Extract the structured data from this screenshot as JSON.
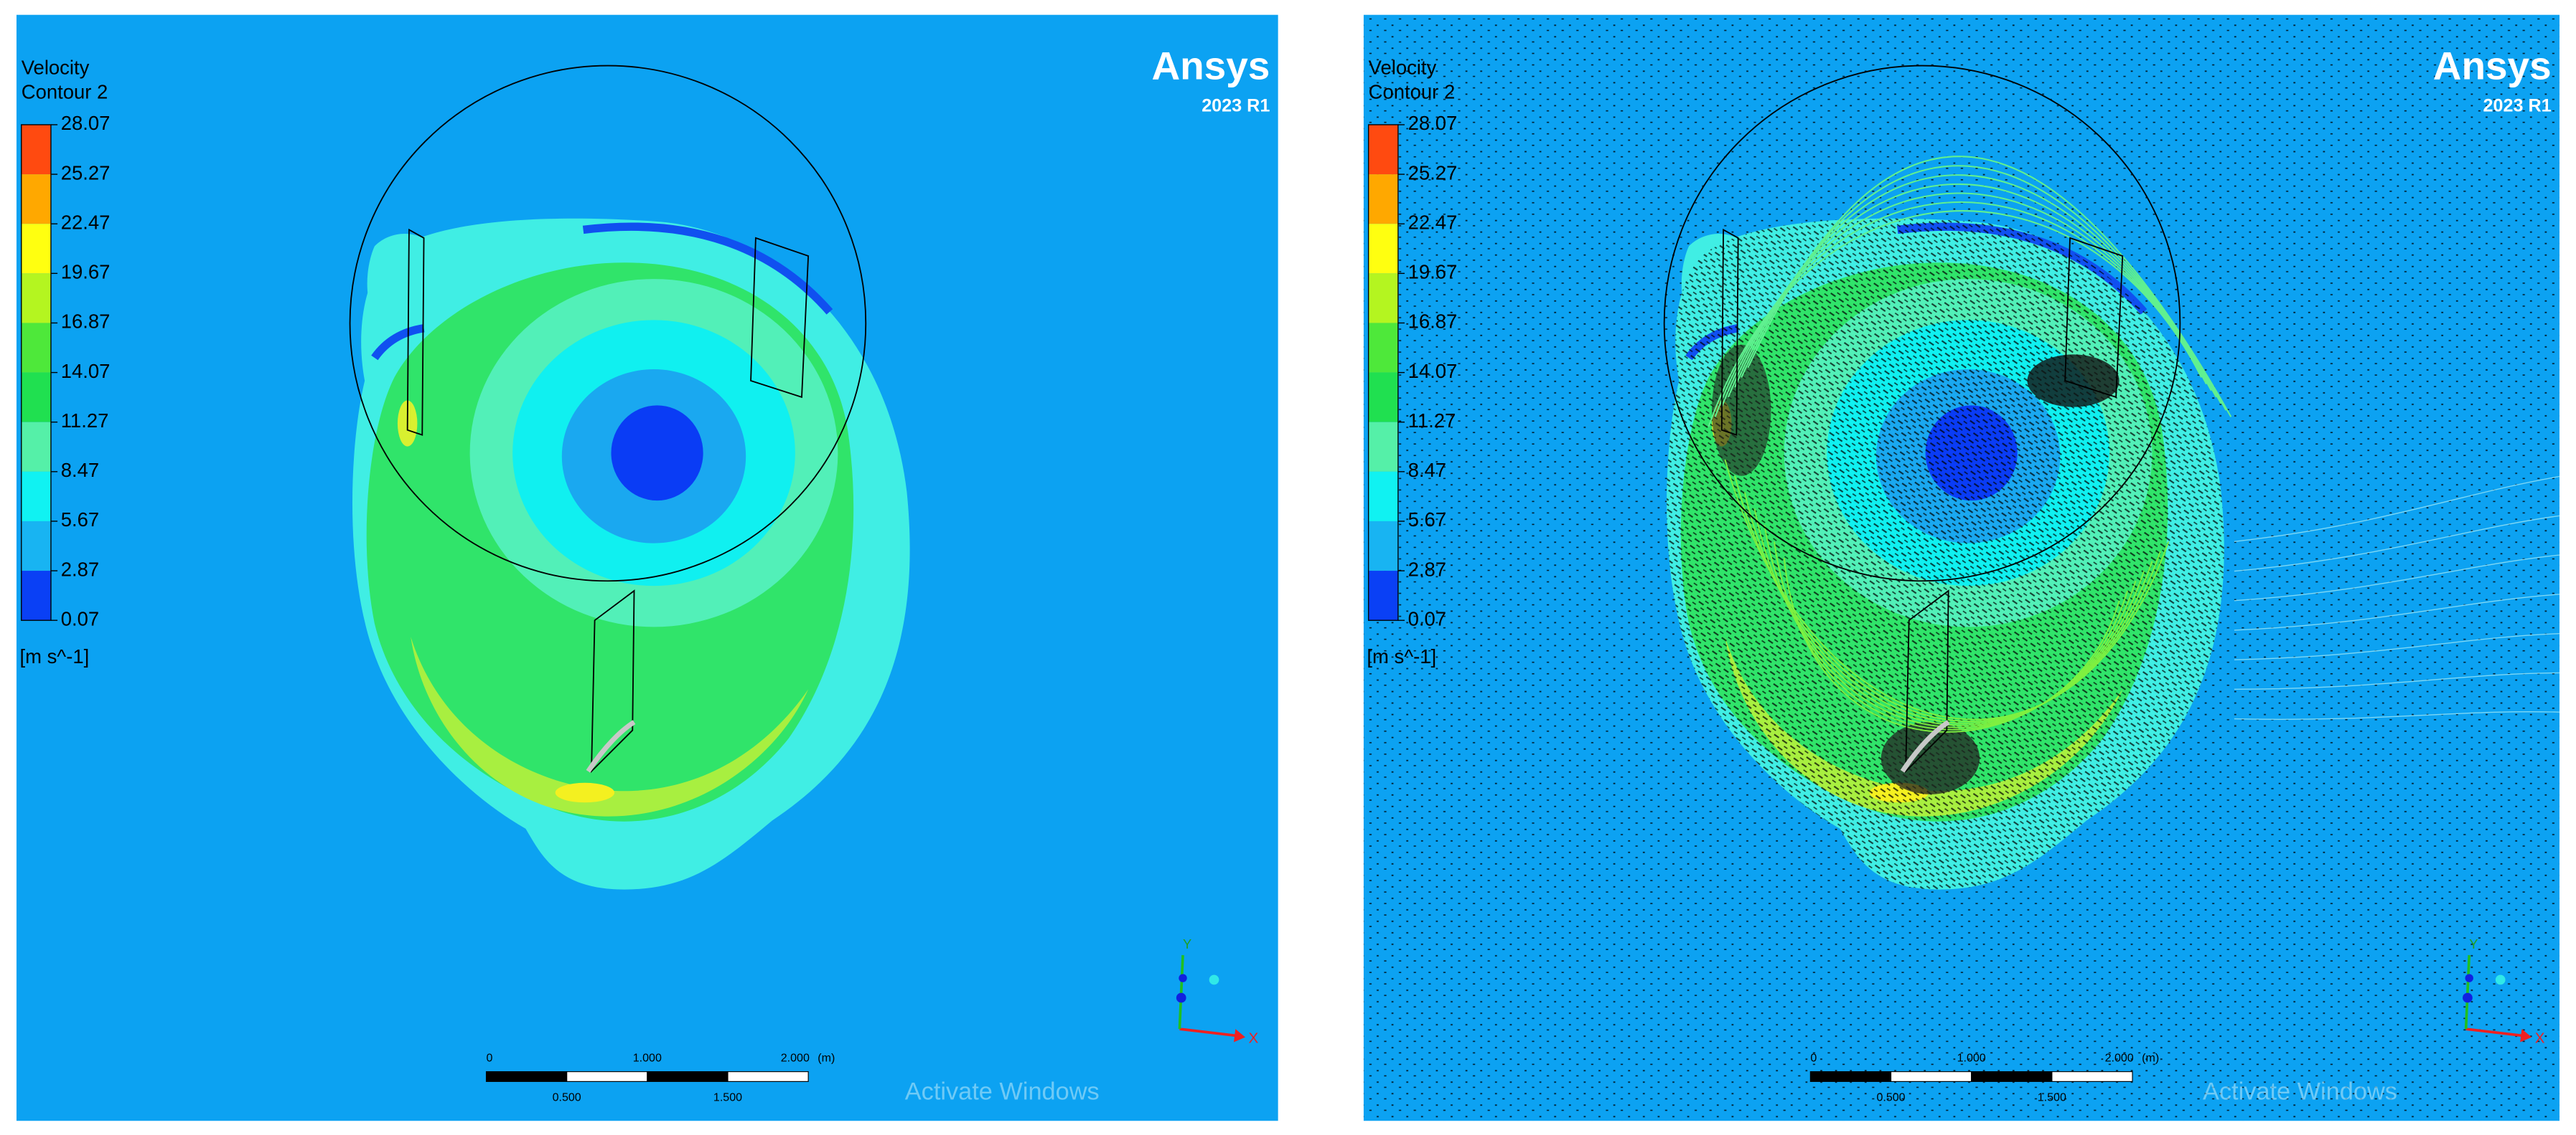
{
  "panels": [
    {
      "legend": {
        "title": "Velocity",
        "subtitle": "Contour 2",
        "labels": [
          "28.07",
          "25.27",
          "22.47",
          "19.67",
          "16.87",
          "14.07",
          "11.27",
          "8.47",
          "5.67",
          "2.87",
          "0.07"
        ],
        "unit": "[m s^-1]"
      },
      "brand": {
        "name": "Ansys",
        "version": "2023 R1"
      },
      "scale_bar": {
        "top_labels": [
          "0",
          "1.000",
          "2.000",
          "(m)"
        ],
        "bottom_labels": [
          "0.500",
          "1.500"
        ]
      },
      "axes": {
        "y": "Y",
        "x": "X"
      },
      "watermark": "Activate Windows"
    },
    {
      "legend": {
        "title": "Velocity",
        "subtitle": "Contour 2",
        "labels": [
          "28.07",
          "25.27",
          "22.47",
          "19.67",
          "16.87",
          "14.07",
          "11.27",
          "8.47",
          "5.67",
          "2.87",
          "0.07"
        ],
        "unit": "[m s^-1]"
      },
      "brand": {
        "name": "Ansys",
        "version": "2023 R1"
      },
      "scale_bar": {
        "top_labels": [
          "0",
          "1.000",
          "2.000",
          "(m)"
        ],
        "bottom_labels": [
          "0.500",
          "1.500"
        ]
      },
      "axes": {
        "y": "Y",
        "x": "X"
      },
      "watermark": "Activate Windows"
    }
  ]
}
